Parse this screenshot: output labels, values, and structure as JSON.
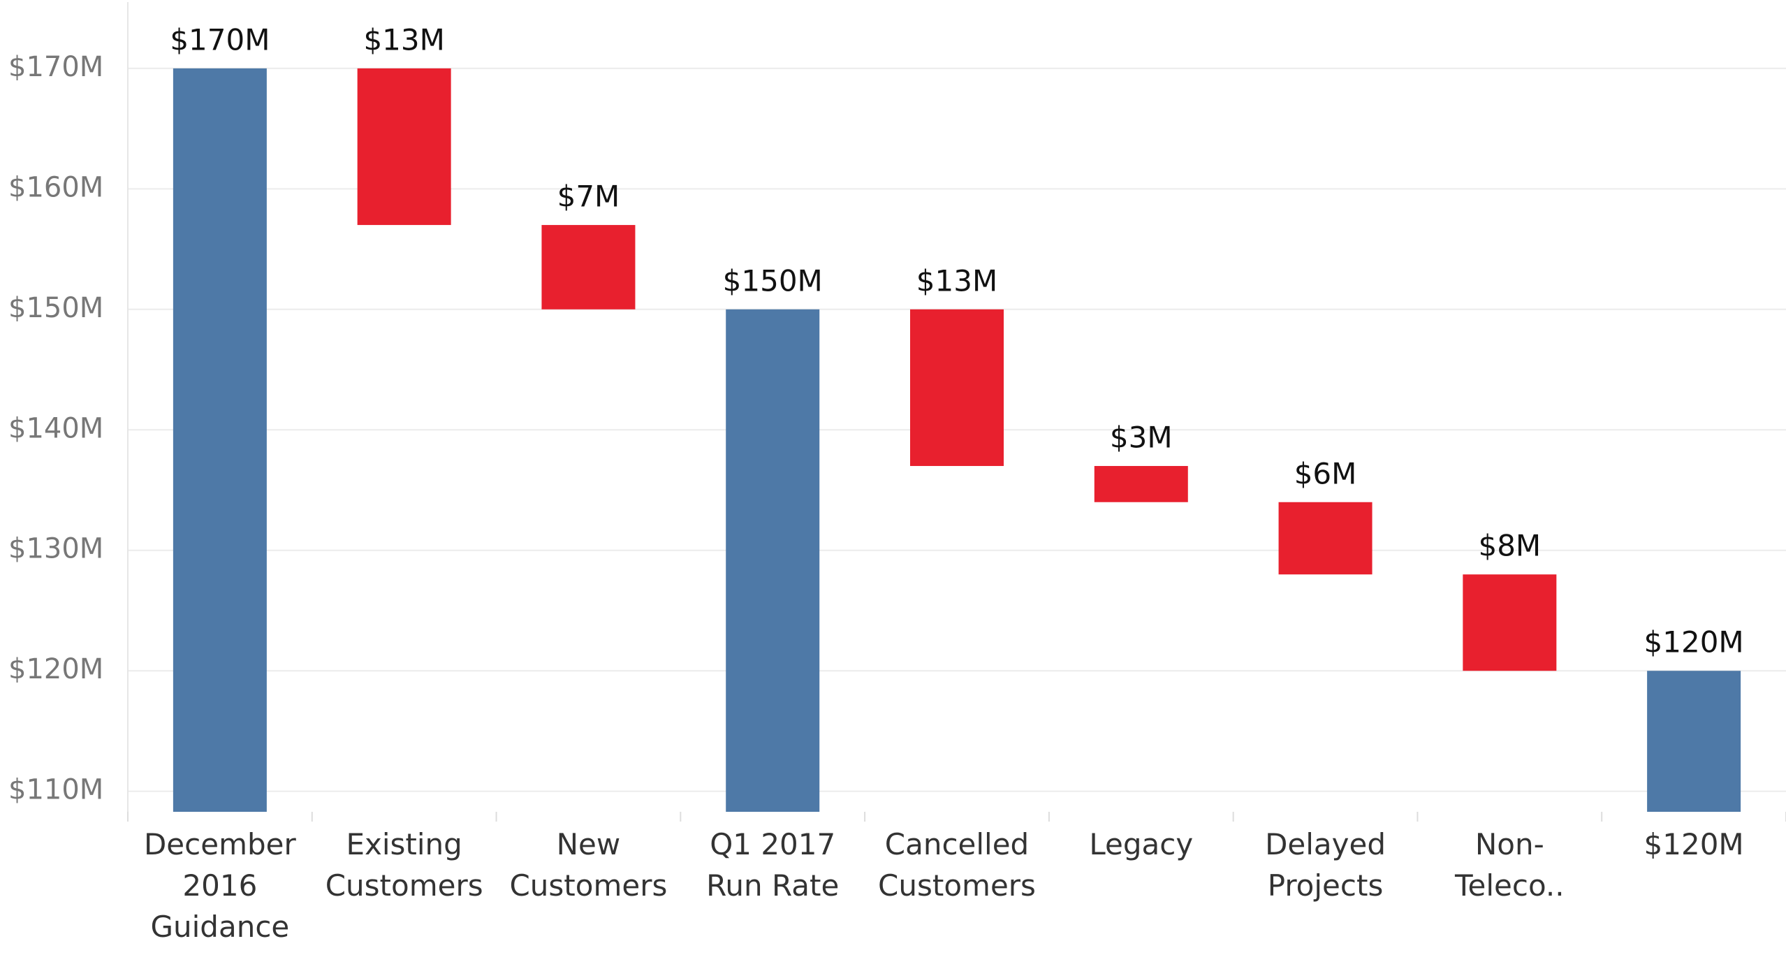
{
  "chart_data": {
    "type": "waterfall",
    "categories": [
      "December 2016 Guidance",
      "Existing Customers",
      "New Customers",
      "Q1 2017 Run Rate",
      "Cancelled Customers",
      "Legacy",
      "Delayed Projects",
      "Non-Teleco..",
      "$120M"
    ],
    "values": [
      170,
      -13,
      -7,
      150,
      -13,
      -3,
      -6,
      -8,
      120
    ],
    "value_labels": [
      "$170M",
      "$13M",
      "$7M",
      "$150M",
      "$13M",
      "$3M",
      "$6M",
      "$8M",
      "$120M"
    ],
    "color": "#4e79a7",
    "decrease_color": "#e8202e",
    "ylim": [
      108.3,
      175.5
    ],
    "yticks": [
      {
        "value": 110,
        "label": "$110M"
      },
      {
        "value": 120,
        "label": "$120M"
      },
      {
        "value": 130,
        "label": "$130M"
      },
      {
        "value": 140,
        "label": "$140M"
      },
      {
        "value": 150,
        "label": "$150M"
      },
      {
        "value": 160,
        "label": "$160M"
      },
      {
        "value": 170,
        "label": "$170M"
      }
    ],
    "grid": true
  }
}
